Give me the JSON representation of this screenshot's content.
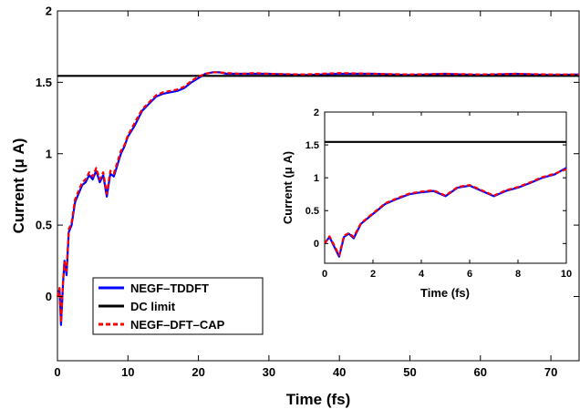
{
  "chart_data": [
    {
      "type": "line",
      "xlabel": "Time (fs)",
      "ylabel": "Current (μ A)",
      "xlim": [
        0,
        74
      ],
      "ylim": [
        -0.45,
        2
      ],
      "xticks": [
        "0",
        "10",
        "20",
        "30",
        "40",
        "50",
        "60",
        "70"
      ],
      "yticks": [
        "0",
        "0.5",
        "1",
        "1.5",
        "2"
      ],
      "grid": false,
      "legend_position": "bottom-left",
      "series": [
        {
          "name": "NEGF–TDDFT",
          "color": "#0000ff",
          "style": "solid",
          "x": [
            0,
            0.3,
            0.5,
            0.8,
            1.0,
            1.3,
            1.6,
            2.0,
            2.5,
            3.0,
            3.5,
            4.0,
            4.5,
            5.0,
            5.5,
            6.0,
            6.5,
            7.0,
            7.5,
            8.0,
            8.5,
            9.0,
            9.5,
            10,
            11,
            12,
            13,
            14,
            15,
            16,
            17,
            18,
            19,
            20,
            21,
            22,
            23,
            24,
            26,
            28,
            30,
            35,
            40,
            45,
            50,
            55,
            60,
            65,
            70,
            74
          ],
          "y": [
            0.0,
            0.05,
            -0.2,
            0.1,
            0.25,
            0.15,
            0.45,
            0.5,
            0.66,
            0.72,
            0.78,
            0.8,
            0.85,
            0.82,
            0.88,
            0.8,
            0.85,
            0.7,
            0.86,
            0.84,
            0.92,
            1.0,
            1.05,
            1.12,
            1.2,
            1.3,
            1.35,
            1.4,
            1.42,
            1.43,
            1.44,
            1.46,
            1.5,
            1.53,
            1.56,
            1.57,
            1.57,
            1.56,
            1.56,
            1.56,
            1.56,
            1.55,
            1.56,
            1.56,
            1.55,
            1.56,
            1.55,
            1.56,
            1.55,
            1.555
          ]
        },
        {
          "name": "DC limit",
          "color": "#000000",
          "style": "solid",
          "x": [
            0,
            74
          ],
          "y": [
            1.545,
            1.545
          ]
        },
        {
          "name": "NEGF–DFT–CAP",
          "color": "#ff0000",
          "style": "dashed",
          "x": [
            0,
            0.3,
            0.5,
            0.8,
            1.0,
            1.3,
            1.6,
            2.0,
            2.5,
            3.0,
            3.5,
            4.0,
            4.5,
            5.0,
            5.5,
            6.0,
            6.5,
            7.0,
            7.5,
            8.0,
            8.5,
            9.0,
            9.5,
            10,
            11,
            12,
            13,
            14,
            15,
            16,
            17,
            18,
            19,
            20,
            21,
            22,
            23,
            24,
            26,
            28,
            30,
            35,
            40,
            45,
            50,
            55,
            60,
            65,
            70,
            74
          ],
          "y": [
            0.0,
            0.06,
            -0.18,
            0.12,
            0.24,
            0.18,
            0.47,
            0.52,
            0.68,
            0.74,
            0.8,
            0.82,
            0.87,
            0.84,
            0.9,
            0.82,
            0.87,
            0.72,
            0.88,
            0.86,
            0.94,
            1.02,
            1.06,
            1.13,
            1.22,
            1.31,
            1.36,
            1.41,
            1.43,
            1.44,
            1.45,
            1.47,
            1.51,
            1.54,
            1.56,
            1.57,
            1.57,
            1.565,
            1.56,
            1.565,
            1.56,
            1.555,
            1.565,
            1.56,
            1.555,
            1.56,
            1.555,
            1.56,
            1.555,
            1.555
          ]
        }
      ]
    },
    {
      "type": "line",
      "xlabel": "Time (fs)",
      "ylabel": "Current (μ A)",
      "xlim": [
        0,
        10
      ],
      "ylim": [
        -0.3,
        2
      ],
      "xticks": [
        "0",
        "2",
        "4",
        "6",
        "8",
        "10"
      ],
      "yticks": [
        "0",
        "0.5",
        "1",
        "1.5",
        "2"
      ],
      "grid": false,
      "series": [
        {
          "name": "NEGF–TDDFT",
          "color": "#0000ff",
          "style": "solid",
          "x": [
            0,
            0.2,
            0.4,
            0.6,
            0.8,
            1.0,
            1.2,
            1.5,
            2.0,
            2.5,
            3.0,
            3.5,
            4.0,
            4.5,
            5.0,
            5.5,
            6.0,
            6.5,
            7.0,
            7.5,
            8.0,
            8.5,
            9.0,
            9.5,
            10
          ],
          "y": [
            0.0,
            0.1,
            -0.05,
            -0.2,
            0.1,
            0.15,
            0.08,
            0.3,
            0.45,
            0.6,
            0.68,
            0.75,
            0.78,
            0.8,
            0.72,
            0.85,
            0.88,
            0.8,
            0.72,
            0.8,
            0.85,
            0.92,
            1.0,
            1.05,
            1.15
          ]
        },
        {
          "name": "DC limit",
          "color": "#000000",
          "style": "solid",
          "x": [
            0,
            10
          ],
          "y": [
            1.545,
            1.545
          ]
        },
        {
          "name": "NEGF–DFT–CAP",
          "color": "#ff0000",
          "style": "dashed",
          "x": [
            0,
            0.2,
            0.4,
            0.6,
            0.8,
            1.0,
            1.2,
            1.5,
            2.0,
            2.5,
            3.0,
            3.5,
            4.0,
            4.5,
            5.0,
            5.5,
            6.0,
            6.5,
            7.0,
            7.5,
            8.0,
            8.5,
            9.0,
            9.5,
            10
          ],
          "y": [
            0.0,
            0.11,
            -0.03,
            -0.18,
            0.12,
            0.16,
            0.1,
            0.31,
            0.46,
            0.61,
            0.69,
            0.76,
            0.79,
            0.81,
            0.73,
            0.86,
            0.89,
            0.81,
            0.73,
            0.81,
            0.86,
            0.93,
            1.01,
            1.06,
            1.13
          ]
        }
      ]
    }
  ]
}
